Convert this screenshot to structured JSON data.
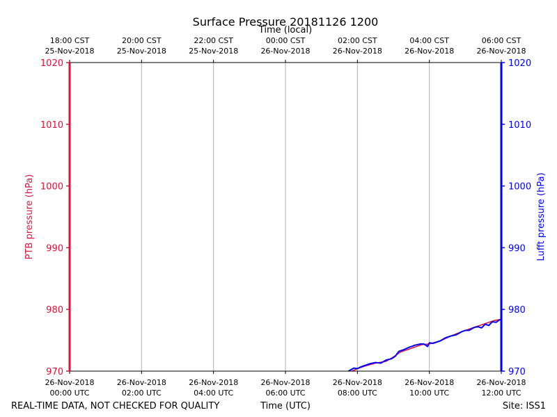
{
  "chart_data": {
    "type": "line",
    "title": "Surface Pressure 20181126 1200",
    "top_axis_label": "Time (local)",
    "xlabel": "Time (UTC)",
    "ylabel_left": "PTB pressure (hPa)",
    "ylabel_right": "Lufft pressure (hPa)",
    "footer_left": "REAL-TIME DATA, NOT CHECKED FOR QUALITY",
    "footer_right": "Site: ISS1",
    "xlim_hours": [
      0,
      12
    ],
    "ylim": [
      970,
      1020
    ],
    "yticks": [
      970,
      980,
      990,
      1000,
      1010,
      1020
    ],
    "grid": true,
    "colors": {
      "left_axis": "#dc143c",
      "right_axis": "#0000ff",
      "ptb_series": "#dc143c",
      "lufft_series": "#0000ff",
      "grid": "#b0b0b0"
    },
    "bottom_ticks": [
      {
        "hour": 0,
        "line1": "26-Nov-2018",
        "line2": "00:00 UTC"
      },
      {
        "hour": 2,
        "line1": "26-Nov-2018",
        "line2": "02:00 UTC"
      },
      {
        "hour": 4,
        "line1": "26-Nov-2018",
        "line2": "04:00 UTC"
      },
      {
        "hour": 6,
        "line1": "26-Nov-2018",
        "line2": "06:00 UTC"
      },
      {
        "hour": 8,
        "line1": "26-Nov-2018",
        "line2": "08:00 UTC"
      },
      {
        "hour": 10,
        "line1": "26-Nov-2018",
        "line2": "10:00 UTC"
      },
      {
        "hour": 12,
        "line1": "26-Nov-2018",
        "line2": "12:00 UTC"
      }
    ],
    "top_ticks": [
      {
        "hour": 0,
        "line1": "18:00 CST",
        "line2": "25-Nov-2018"
      },
      {
        "hour": 2,
        "line1": "20:00 CST",
        "line2": "25-Nov-2018"
      },
      {
        "hour": 4,
        "line1": "22:00 CST",
        "line2": "25-Nov-2018"
      },
      {
        "hour": 6,
        "line1": "00:00 CST",
        "line2": "26-Nov-2018"
      },
      {
        "hour": 8,
        "line1": "02:00 CST",
        "line2": "26-Nov-2018"
      },
      {
        "hour": 10,
        "line1": "04:00 CST",
        "line2": "26-Nov-2018"
      },
      {
        "hour": 12,
        "line1": "06:00 CST",
        "line2": "26-Nov-2018"
      }
    ],
    "series": [
      {
        "name": "PTB pressure",
        "x": [
          7.85,
          8.0,
          8.2,
          8.5,
          8.8,
          9.0,
          9.2,
          9.5,
          9.8,
          10.0,
          10.3,
          10.6,
          10.9,
          11.2,
          11.5,
          11.8,
          12.0
        ],
        "y": [
          970.0,
          970.4,
          970.8,
          971.3,
          971.6,
          972.3,
          973.1,
          973.7,
          974.3,
          974.4,
          974.9,
          975.7,
          976.4,
          977.0,
          977.6,
          978.2,
          978.4
        ]
      },
      {
        "name": "Lufft pressure",
        "x": [
          7.75,
          7.9,
          8.0,
          8.1,
          8.2,
          8.35,
          8.5,
          8.65,
          8.8,
          8.95,
          9.05,
          9.15,
          9.3,
          9.45,
          9.6,
          9.75,
          9.85,
          9.95,
          10.0,
          10.1,
          10.2,
          10.3,
          10.45,
          10.6,
          10.75,
          10.9,
          11.0,
          11.1,
          11.25,
          11.35,
          11.45,
          11.55,
          11.65,
          11.75,
          11.85,
          11.95,
          12.0
        ],
        "y": [
          970.0,
          970.5,
          970.4,
          970.7,
          970.9,
          971.2,
          971.4,
          971.3,
          971.8,
          972.0,
          972.4,
          973.2,
          973.5,
          973.9,
          974.2,
          974.4,
          974.4,
          974.0,
          974.6,
          974.5,
          974.7,
          974.9,
          975.4,
          975.7,
          975.9,
          976.4,
          976.6,
          976.6,
          977.1,
          977.2,
          977.0,
          977.6,
          977.4,
          978.0,
          977.9,
          978.3,
          978.4
        ]
      }
    ]
  }
}
